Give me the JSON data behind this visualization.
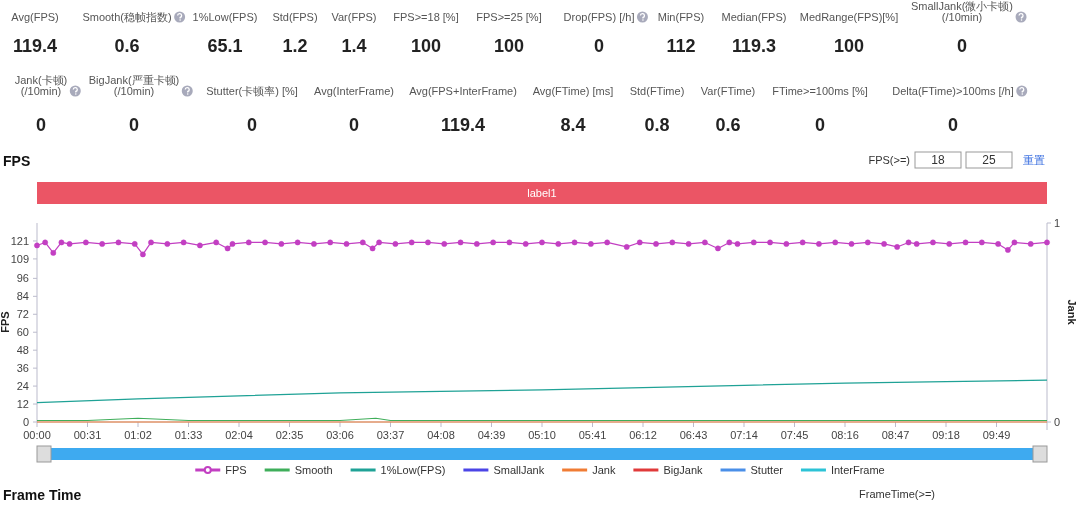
{
  "chart_data": [
    {
      "type": "other",
      "categories": [
        "Avg(FPS)",
        "Smooth(稳帧指数)",
        "1%Low(FPS)",
        "Std(FPS)",
        "Var(FPS)",
        "FPS>=18 [%]",
        "FPS>=25 [%]",
        "Drop(FPS) [/h]",
        "Min(FPS)",
        "Median(FPS)",
        "MedRange(FPS)[%]",
        "SmallJank(微小卡顿)\n(/10min)",
        "Jank(卡顿)\n(/10min)",
        "BigJank(严重卡顿)\n(/10min)",
        "Stutter(卡顿率) [%]",
        "Avg(InterFrame)",
        "Avg(FPS+InterFrame)",
        "Avg(FTime) [ms]",
        "Std(FTime)",
        "Var(FTime)",
        "FTime>=100ms [%]",
        "Delta(FTime)>100ms [/h]"
      ],
      "values": [
        119.4,
        0.6,
        65.1,
        1.2,
        1.4,
        100,
        100,
        0,
        112,
        119.3,
        100,
        0,
        0,
        0,
        0,
        0,
        119.4,
        8.4,
        0.8,
        0.6,
        0,
        0
      ],
      "data_labels": true
    },
    {
      "type": "line",
      "title": "FPS",
      "ylabel": "FPS",
      "y2label": "Jank",
      "xlim": [
        0,
        620
      ],
      "ylim": [
        0,
        133
      ],
      "y2lim": [
        0,
        1
      ],
      "xticks": [
        {
          "value": 0,
          "label": "00:00"
        },
        {
          "value": 31,
          "label": "00:31"
        },
        {
          "value": 62,
          "label": "01:02"
        },
        {
          "value": 93,
          "label": "01:33"
        },
        {
          "value": 124,
          "label": "02:04"
        },
        {
          "value": 155,
          "label": "02:35"
        },
        {
          "value": 186,
          "label": "03:06"
        },
        {
          "value": 217,
          "label": "03:37"
        },
        {
          "value": 248,
          "label": "04:08"
        },
        {
          "value": 279,
          "label": "04:39"
        },
        {
          "value": 310,
          "label": "05:10"
        },
        {
          "value": 341,
          "label": "05:41"
        },
        {
          "value": 372,
          "label": "06:12"
        },
        {
          "value": 403,
          "label": "06:43"
        },
        {
          "value": 434,
          "label": "07:14"
        },
        {
          "value": 465,
          "label": "07:45"
        },
        {
          "value": 496,
          "label": "08:16"
        },
        {
          "value": 527,
          "label": "08:47"
        },
        {
          "value": 558,
          "label": "09:18"
        },
        {
          "value": 589,
          "label": "09:49"
        }
      ],
      "yticks": [
        0,
        12,
        24,
        36,
        48,
        60,
        72,
        84,
        96,
        109,
        121
      ],
      "y2ticks": [
        0,
        1
      ],
      "legend": "bottom",
      "grid": false,
      "annotations": [
        "FPS(>=)",
        "18",
        "25",
        "重置",
        "Frame Time",
        "FrameTime(>=)",
        "label1"
      ],
      "series": [
        {
          "name": "FPS",
          "color": "#c23fc2",
          "marker": "circle",
          "x": [
            0,
            5,
            10,
            15,
            20,
            30,
            40,
            50,
            60,
            65,
            70,
            80,
            90,
            100,
            110,
            117,
            120,
            130,
            140,
            150,
            160,
            170,
            180,
            190,
            200,
            206,
            210,
            220,
            230,
            240,
            250,
            260,
            270,
            280,
            290,
            300,
            310,
            320,
            330,
            340,
            350,
            362,
            370,
            380,
            390,
            400,
            410,
            418,
            425,
            430,
            440,
            450,
            460,
            470,
            480,
            490,
            500,
            510,
            520,
            528,
            535,
            540,
            550,
            560,
            570,
            580,
            590,
            596,
            600,
            610,
            620
          ],
          "values": [
            118,
            120,
            113,
            120,
            119,
            120,
            119,
            120,
            119,
            112,
            120,
            119,
            120,
            118,
            120,
            116,
            119,
            120,
            120,
            119,
            120,
            119,
            120,
            119,
            120,
            116,
            120,
            119,
            120,
            120,
            119,
            120,
            119,
            120,
            120,
            119,
            120,
            119,
            120,
            119,
            120,
            117,
            120,
            119,
            120,
            119,
            120,
            116,
            120,
            119,
            120,
            120,
            119,
            120,
            119,
            120,
            119,
            120,
            119,
            117,
            120,
            119,
            120,
            119,
            120,
            120,
            119,
            115,
            120,
            119,
            120
          ]
        },
        {
          "name": "Smooth",
          "color": "#3fae5a",
          "marker": "none",
          "x": [
            0,
            31,
            62,
            93,
            124,
            155,
            186,
            208,
            217,
            248,
            279,
            310,
            341,
            372,
            403,
            434,
            465,
            496,
            527,
            558,
            589,
            620
          ],
          "values": [
            1,
            1,
            2.5,
            1,
            1,
            1,
            1,
            2.5,
            1,
            1,
            1,
            1,
            1,
            1,
            1,
            1,
            1,
            1,
            1,
            1,
            1,
            1
          ]
        },
        {
          "name": "1%Low(FPS)",
          "color": "#1fa296",
          "marker": "none",
          "x": [
            0,
            62,
            124,
            186,
            248,
            310,
            372,
            434,
            496,
            558,
            620
          ],
          "values": [
            13,
            15.5,
            17.5,
            19.5,
            20.5,
            21.5,
            23,
            24.5,
            26,
            27,
            28
          ]
        },
        {
          "name": "SmallJank",
          "color": "#4b45e6",
          "marker": "none"
        },
        {
          "name": "Jank",
          "color": "#f07c34",
          "marker": "none",
          "x": [
            0,
            620
          ],
          "values": [
            0,
            0
          ]
        },
        {
          "name": "BigJank",
          "color": "#e03a3a",
          "marker": "none"
        },
        {
          "name": "Stutter",
          "color": "#4a8fe8",
          "marker": "none"
        },
        {
          "name": "InterFrame",
          "color": "#2cc3d6",
          "marker": "none"
        }
      ]
    }
  ]
}
